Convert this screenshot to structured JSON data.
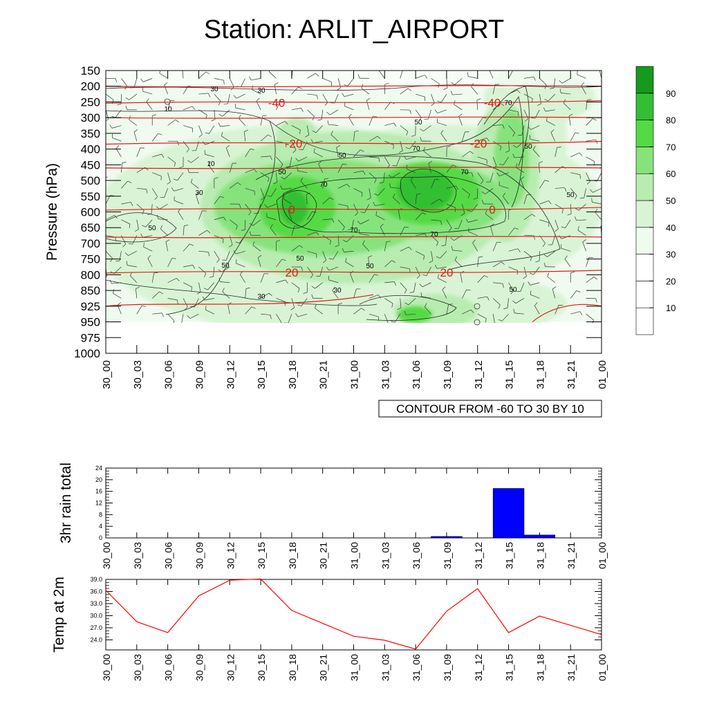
{
  "title": "Station: ARLIT_AIRPORT",
  "chart_data": [
    {
      "type": "contour",
      "panel": "upper-air cross section",
      "ylabel": "Pressure (hPa)",
      "yticks": [
        "150",
        "200",
        "250",
        "300",
        "350",
        "400",
        "450",
        "500",
        "550",
        "600",
        "650",
        "700",
        "750",
        "800",
        "850",
        "925",
        "950",
        "975",
        "1000"
      ],
      "xticks": [
        "30_00",
        "30_03",
        "30_06",
        "30_09",
        "30_12",
        "30_15",
        "30_18",
        "30_21",
        "31_00",
        "31_03",
        "31_06",
        "31_09",
        "31_12",
        "31_15",
        "31_18",
        "31_21",
        "01_00"
      ],
      "info_label": "CONTOUR FROM -60 TO 30 BY 10",
      "colorbar": {
        "levels": [
          "10",
          "20",
          "30",
          "40",
          "50",
          "60",
          "70",
          "80",
          "90"
        ],
        "colors": [
          "#ffffff",
          "#ffffff",
          "#ffffff",
          "#f0fbef",
          "#d8f4d4",
          "#b8ecb0",
          "#86e37b",
          "#54da45",
          "#33bf33",
          "#159a1d"
        ]
      },
      "temperature_contours": [
        {
          "label": "-40",
          "level_hpa": 250
        },
        {
          "label": "-20",
          "level_hpa": 380
        },
        {
          "label": "0",
          "level_hpa": 590
        },
        {
          "label": "20",
          "level_hpa": 790
        }
      ],
      "humidity_labels": [
        "10",
        "30",
        "50",
        "70"
      ]
    },
    {
      "type": "bar",
      "ylabel": "3hr rain total",
      "ylim": [
        0,
        24
      ],
      "yticks": [
        "0",
        "4",
        "8",
        "12",
        "16",
        "20",
        "24"
      ],
      "categories": [
        "30_00",
        "30_03",
        "30_06",
        "30_09",
        "30_12",
        "30_15",
        "30_18",
        "30_21",
        "31_00",
        "31_03",
        "31_06",
        "31_09",
        "31_12",
        "31_15",
        "31_18",
        "31_21",
        "01_00"
      ],
      "values": [
        0,
        0,
        0,
        0,
        0,
        0,
        0,
        0,
        0,
        0,
        0,
        0.5,
        0,
        17,
        1.0,
        0,
        0
      ],
      "bar_color": "#0000ff"
    },
    {
      "type": "line",
      "ylabel": "Temp at 2m",
      "ylim": [
        21.5,
        39.0
      ],
      "yticks": [
        "24.0",
        "27.0",
        "30.0",
        "33.0",
        "36.0",
        "39.0"
      ],
      "x": [
        "30_00",
        "30_03",
        "30_06",
        "30_09",
        "30_12",
        "30_15",
        "30_18",
        "30_21",
        "31_00",
        "31_03",
        "31_06",
        "31_09",
        "31_12",
        "31_15",
        "31_18",
        "31_21",
        "01_00"
      ],
      "values": [
        36.3,
        28.5,
        25.8,
        34.9,
        38.8,
        39.1,
        31.3,
        28.1,
        24.9,
        23.9,
        21.7,
        31.1,
        36.7,
        25.8,
        29.9,
        27.6,
        25.3
      ],
      "line_color": "#ff0000"
    }
  ]
}
